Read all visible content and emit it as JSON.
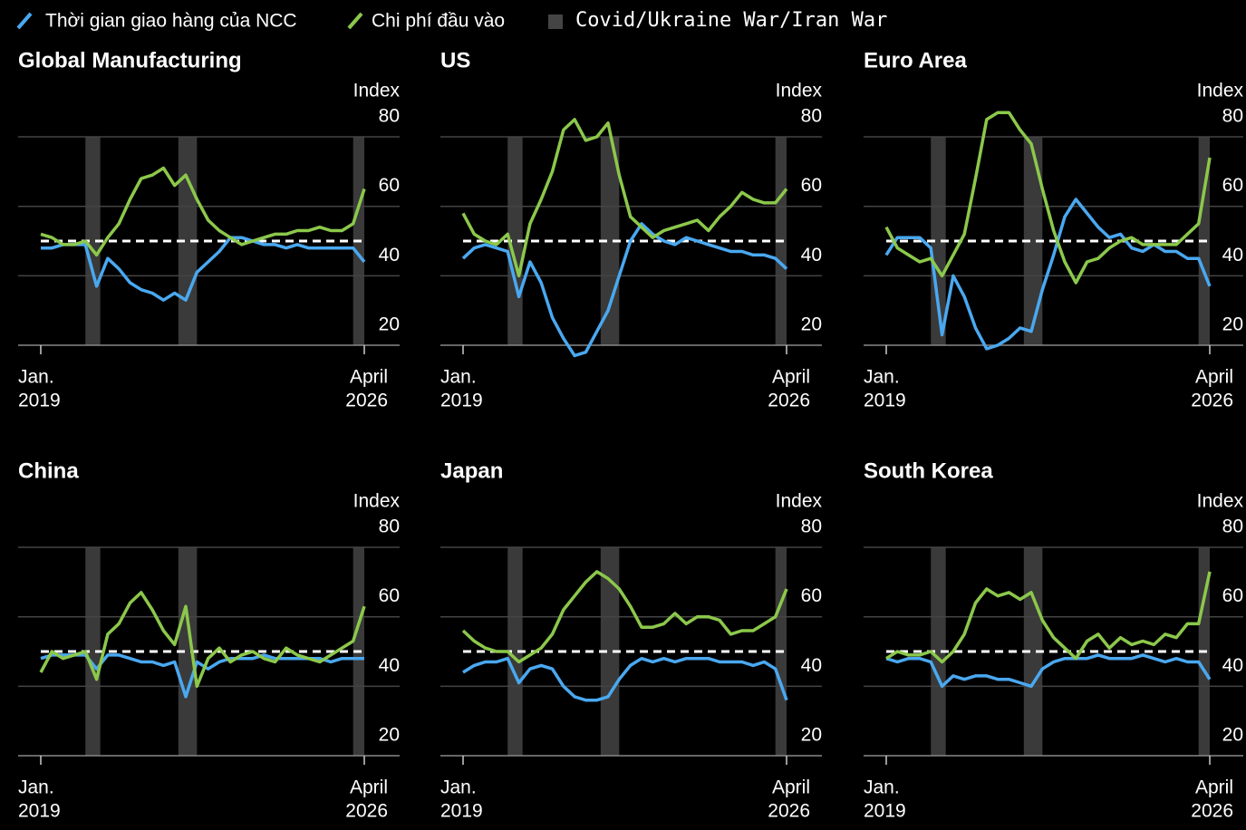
{
  "legend_shading": "Covid/Ukraine War/Iran War",
  "chart_data": [
    {
      "type": "line",
      "title": "Global Manufacturing",
      "y_label": "Index",
      "x": [
        "2019-01",
        "2019-04",
        "2019-07",
        "2019-10",
        "2020-01",
        "2020-04",
        "2020-07",
        "2020-10",
        "2021-01",
        "2021-04",
        "2021-07",
        "2021-10",
        "2022-01",
        "2022-04",
        "2022-07",
        "2022-10",
        "2023-01",
        "2023-04",
        "2023-07",
        "2023-10",
        "2024-01",
        "2024-04",
        "2024-07",
        "2024-10",
        "2025-01",
        "2025-04",
        "2025-07",
        "2025-10",
        "2026-01",
        "2026-04"
      ],
      "series": [
        {
          "name": "Thời gian giao hàng của NCC",
          "color": "#4aa8f0",
          "values": [
            48,
            48,
            49,
            49,
            49,
            37,
            45,
            42,
            38,
            36,
            35,
            33,
            35,
            33,
            41,
            44,
            47,
            51,
            51,
            50,
            49,
            49,
            48,
            49,
            48,
            48,
            48,
            48,
            48,
            44
          ]
        },
        {
          "name": "Chi phí đầu vào",
          "color": "#8cc84b",
          "values": [
            52,
            51,
            49,
            49,
            50,
            46,
            51,
            55,
            62,
            68,
            69,
            71,
            66,
            69,
            62,
            56,
            53,
            51,
            49,
            50,
            51,
            52,
            52,
            53,
            53,
            54,
            53,
            53,
            55,
            65
          ]
        }
      ],
      "xlim": [
        "2019-01",
        "2026-04"
      ],
      "xticks": [
        {
          "value": "2019-01",
          "label": [
            "Jan.",
            "2019"
          ]
        },
        {
          "value": "2026-04",
          "label": [
            "April",
            "2026"
          ]
        }
      ],
      "ylim": [
        15,
        90
      ],
      "yticks": [
        20,
        40,
        60,
        80
      ],
      "grid": true,
      "reference_line": 50,
      "reference_color": "#ffffff",
      "shading": [
        [
          "2020-01",
          "2020-05"
        ],
        [
          "2022-02",
          "2022-07"
        ],
        [
          "2026-01",
          "2026-04"
        ]
      ],
      "shading_color": "#3a3a3a"
    },
    {
      "type": "line",
      "title": "US",
      "y_label": "Index",
      "x": [
        "2019-01",
        "2019-04",
        "2019-07",
        "2019-10",
        "2020-01",
        "2020-04",
        "2020-07",
        "2020-10",
        "2021-01",
        "2021-04",
        "2021-07",
        "2021-10",
        "2022-01",
        "2022-04",
        "2022-07",
        "2022-10",
        "2023-01",
        "2023-04",
        "2023-07",
        "2023-10",
        "2024-01",
        "2024-04",
        "2024-07",
        "2024-10",
        "2025-01",
        "2025-04",
        "2025-07",
        "2025-10",
        "2026-01",
        "2026-04"
      ],
      "series": [
        {
          "name": "Thời gian giao hàng của NCC",
          "color": "#4aa8f0",
          "values": [
            45,
            48,
            49,
            48,
            47,
            34,
            44,
            38,
            28,
            22,
            17,
            18,
            24,
            30,
            40,
            50,
            55,
            52,
            50,
            49,
            51,
            50,
            49,
            48,
            47,
            47,
            46,
            46,
            45,
            42
          ]
        },
        {
          "name": "Chi phí đầu vào",
          "color": "#8cc84b",
          "values": [
            58,
            52,
            50,
            49,
            52,
            40,
            55,
            62,
            70,
            82,
            85,
            79,
            80,
            84,
            69,
            57,
            54,
            51,
            53,
            54,
            55,
            56,
            53,
            57,
            60,
            64,
            62,
            61,
            61,
            65
          ]
        }
      ],
      "xlim": [
        "2019-01",
        "2026-04"
      ],
      "xticks": [
        {
          "value": "2019-01",
          "label": [
            "Jan.",
            "2019"
          ]
        },
        {
          "value": "2026-04",
          "label": [
            "April",
            "2026"
          ]
        }
      ],
      "ylim": [
        15,
        90
      ],
      "yticks": [
        20,
        40,
        60,
        80
      ],
      "grid": true,
      "reference_line": 50,
      "reference_color": "#ffffff",
      "shading": [
        [
          "2020-01",
          "2020-05"
        ],
        [
          "2022-02",
          "2022-07"
        ],
        [
          "2026-01",
          "2026-04"
        ]
      ],
      "shading_color": "#3a3a3a"
    },
    {
      "type": "line",
      "title": "Euro Area",
      "y_label": "Index",
      "x": [
        "2019-01",
        "2019-04",
        "2019-07",
        "2019-10",
        "2020-01",
        "2020-04",
        "2020-07",
        "2020-10",
        "2021-01",
        "2021-04",
        "2021-07",
        "2021-10",
        "2022-01",
        "2022-04",
        "2022-07",
        "2022-10",
        "2023-01",
        "2023-04",
        "2023-07",
        "2023-10",
        "2024-01",
        "2024-04",
        "2024-07",
        "2024-10",
        "2025-01",
        "2025-04",
        "2025-07",
        "2025-10",
        "2026-01",
        "2026-04"
      ],
      "series": [
        {
          "name": "Thời gian giao hàng của NCC",
          "color": "#4aa8f0",
          "values": [
            46,
            51,
            51,
            51,
            48,
            23,
            40,
            34,
            25,
            19,
            20,
            22,
            25,
            24,
            36,
            46,
            57,
            62,
            58,
            54,
            51,
            52,
            48,
            47,
            49,
            47,
            47,
            45,
            45,
            37
          ]
        },
        {
          "name": "Chi phí đầu vào",
          "color": "#8cc84b",
          "values": [
            54,
            48,
            46,
            44,
            45,
            40,
            46,
            52,
            68,
            85,
            87,
            87,
            82,
            78,
            65,
            53,
            44,
            38,
            44,
            45,
            48,
            50,
            51,
            49,
            49,
            49,
            49,
            52,
            55,
            74
          ]
        }
      ],
      "xlim": [
        "2019-01",
        "2026-04"
      ],
      "xticks": [
        {
          "value": "2019-01",
          "label": [
            "Jan.",
            "2019"
          ]
        },
        {
          "value": "2026-04",
          "label": [
            "April",
            "2026"
          ]
        }
      ],
      "ylim": [
        15,
        90
      ],
      "yticks": [
        20,
        40,
        60,
        80
      ],
      "grid": true,
      "reference_line": 50,
      "reference_color": "#ffffff",
      "shading": [
        [
          "2020-01",
          "2020-05"
        ],
        [
          "2022-02",
          "2022-07"
        ],
        [
          "2026-01",
          "2026-04"
        ]
      ],
      "shading_color": "#3a3a3a"
    },
    {
      "type": "line",
      "title": "China",
      "y_label": "Index",
      "x": [
        "2019-01",
        "2019-04",
        "2019-07",
        "2019-10",
        "2020-01",
        "2020-04",
        "2020-07",
        "2020-10",
        "2021-01",
        "2021-04",
        "2021-07",
        "2021-10",
        "2022-01",
        "2022-04",
        "2022-07",
        "2022-10",
        "2023-01",
        "2023-04",
        "2023-07",
        "2023-10",
        "2024-01",
        "2024-04",
        "2024-07",
        "2024-10",
        "2025-01",
        "2025-04",
        "2025-07",
        "2025-10",
        "2026-01",
        "2026-04"
      ],
      "series": [
        {
          "name": "Thời gian giao hàng của NCC",
          "color": "#4aa8f0",
          "values": [
            48,
            49,
            49,
            49,
            49,
            45,
            49,
            49,
            48,
            47,
            47,
            46,
            47,
            37,
            47,
            45,
            47,
            48,
            48,
            48,
            49,
            48,
            48,
            48,
            48,
            48,
            47,
            48,
            48,
            48
          ]
        },
        {
          "name": "Chi phí đầu vào",
          "color": "#8cc84b",
          "values": [
            44,
            50,
            48,
            49,
            50,
            42,
            55,
            58,
            64,
            67,
            62,
            56,
            52,
            63,
            40,
            48,
            51,
            47,
            49,
            50,
            48,
            47,
            51,
            49,
            48,
            47,
            49,
            51,
            53,
            63
          ]
        }
      ],
      "xlim": [
        "2019-01",
        "2026-04"
      ],
      "xticks": [
        {
          "value": "2019-01",
          "label": [
            "Jan.",
            "2019"
          ]
        },
        {
          "value": "2026-04",
          "label": [
            "April",
            "2026"
          ]
        }
      ],
      "ylim": [
        15,
        90
      ],
      "yticks": [
        20,
        40,
        60,
        80
      ],
      "grid": true,
      "reference_line": 50,
      "reference_color": "#ffffff",
      "shading": [
        [
          "2020-01",
          "2020-05"
        ],
        [
          "2022-02",
          "2022-07"
        ],
        [
          "2026-01",
          "2026-04"
        ]
      ],
      "shading_color": "#3a3a3a"
    },
    {
      "type": "line",
      "title": "Japan",
      "y_label": "Index",
      "x": [
        "2019-01",
        "2019-04",
        "2019-07",
        "2019-10",
        "2020-01",
        "2020-04",
        "2020-07",
        "2020-10",
        "2021-01",
        "2021-04",
        "2021-07",
        "2021-10",
        "2022-01",
        "2022-04",
        "2022-07",
        "2022-10",
        "2023-01",
        "2023-04",
        "2023-07",
        "2023-10",
        "2024-01",
        "2024-04",
        "2024-07",
        "2024-10",
        "2025-01",
        "2025-04",
        "2025-07",
        "2025-10",
        "2026-01",
        "2026-04"
      ],
      "series": [
        {
          "name": "Thời gian giao hàng của NCC",
          "color": "#4aa8f0",
          "values": [
            44,
            46,
            47,
            47,
            48,
            41,
            45,
            46,
            45,
            40,
            37,
            36,
            36,
            37,
            42,
            46,
            48,
            47,
            48,
            47,
            48,
            48,
            48,
            47,
            47,
            47,
            46,
            47,
            45,
            36
          ]
        },
        {
          "name": "Chi phí đầu vào",
          "color": "#8cc84b",
          "values": [
            56,
            53,
            51,
            50,
            50,
            47,
            49,
            51,
            55,
            62,
            66,
            70,
            73,
            71,
            68,
            63,
            57,
            57,
            58,
            61,
            58,
            60,
            60,
            59,
            55,
            56,
            56,
            58,
            60,
            68
          ]
        }
      ],
      "xlim": [
        "2019-01",
        "2026-04"
      ],
      "xticks": [
        {
          "value": "2019-01",
          "label": [
            "Jan.",
            "2019"
          ]
        },
        {
          "value": "2026-04",
          "label": [
            "April",
            "2026"
          ]
        }
      ],
      "ylim": [
        15,
        90
      ],
      "yticks": [
        20,
        40,
        60,
        80
      ],
      "grid": true,
      "reference_line": 50,
      "reference_color": "#ffffff",
      "shading": [
        [
          "2020-01",
          "2020-05"
        ],
        [
          "2022-02",
          "2022-07"
        ],
        [
          "2026-01",
          "2026-04"
        ]
      ],
      "shading_color": "#3a3a3a"
    },
    {
      "type": "line",
      "title": "South Korea",
      "y_label": "Index",
      "x": [
        "2019-01",
        "2019-04",
        "2019-07",
        "2019-10",
        "2020-01",
        "2020-04",
        "2020-07",
        "2020-10",
        "2021-01",
        "2021-04",
        "2021-07",
        "2021-10",
        "2022-01",
        "2022-04",
        "2022-07",
        "2022-10",
        "2023-01",
        "2023-04",
        "2023-07",
        "2023-10",
        "2024-01",
        "2024-04",
        "2024-07",
        "2024-10",
        "2025-01",
        "2025-04",
        "2025-07",
        "2025-10",
        "2026-01",
        "2026-04"
      ],
      "series": [
        {
          "name": "Thời gian giao hàng của NCC",
          "color": "#4aa8f0",
          "values": [
            48,
            47,
            48,
            48,
            47,
            40,
            43,
            42,
            43,
            43,
            42,
            42,
            41,
            40,
            45,
            47,
            48,
            48,
            48,
            49,
            48,
            48,
            48,
            49,
            48,
            47,
            48,
            47,
            47,
            42
          ]
        },
        {
          "name": "Chi phí đầu vào",
          "color": "#8cc84b",
          "values": [
            48,
            50,
            49,
            49,
            50,
            47,
            50,
            55,
            64,
            68,
            66,
            67,
            65,
            67,
            59,
            54,
            51,
            48,
            53,
            55,
            51,
            54,
            52,
            53,
            52,
            55,
            54,
            58,
            58,
            73
          ]
        }
      ],
      "xlim": [
        "2019-01",
        "2026-04"
      ],
      "xticks": [
        {
          "value": "2019-01",
          "label": [
            "Jan.",
            "2019"
          ]
        },
        {
          "value": "2026-04",
          "label": [
            "April",
            "2026"
          ]
        }
      ],
      "ylim": [
        15,
        90
      ],
      "yticks": [
        20,
        40,
        60,
        80
      ],
      "grid": true,
      "reference_line": 50,
      "reference_color": "#ffffff",
      "shading": [
        [
          "2020-01",
          "2020-05"
        ],
        [
          "2022-02",
          "2022-07"
        ],
        [
          "2026-01",
          "2026-04"
        ]
      ],
      "shading_color": "#3a3a3a"
    }
  ]
}
